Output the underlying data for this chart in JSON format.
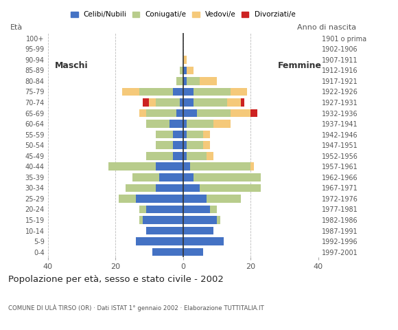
{
  "age_groups": [
    "0-4",
    "5-9",
    "10-14",
    "15-19",
    "20-24",
    "25-29",
    "30-34",
    "35-39",
    "40-44",
    "45-49",
    "50-54",
    "55-59",
    "60-64",
    "65-69",
    "70-74",
    "75-79",
    "80-84",
    "85-89",
    "90-94",
    "95-99",
    "100+"
  ],
  "birth_years": [
    "1997-2001",
    "1992-1996",
    "1987-1991",
    "1982-1986",
    "1977-1981",
    "1972-1976",
    "1967-1971",
    "1962-1966",
    "1957-1961",
    "1952-1956",
    "1947-1951",
    "1942-1946",
    "1937-1941",
    "1932-1936",
    "1927-1931",
    "1922-1926",
    "1917-1921",
    "1912-1916",
    "1907-1911",
    "1902-1906",
    "1901 o prima"
  ],
  "males": {
    "celibi": [
      9,
      14,
      11,
      12,
      11,
      14,
      8,
      7,
      8,
      3,
      3,
      3,
      4,
      2,
      1,
      3,
      0,
      0,
      0,
      0,
      0
    ],
    "coniugati": [
      0,
      0,
      0,
      1,
      2,
      5,
      9,
      8,
      14,
      8,
      5,
      5,
      7,
      9,
      7,
      10,
      2,
      1,
      0,
      0,
      0
    ],
    "vedovi": [
      0,
      0,
      0,
      0,
      0,
      0,
      0,
      0,
      0,
      0,
      0,
      0,
      0,
      2,
      2,
      5,
      0,
      0,
      0,
      0,
      0
    ],
    "divorziati": [
      0,
      0,
      0,
      0,
      0,
      0,
      0,
      0,
      0,
      0,
      0,
      0,
      0,
      0,
      2,
      0,
      0,
      0,
      0,
      0,
      0
    ]
  },
  "females": {
    "celibi": [
      6,
      12,
      9,
      10,
      8,
      7,
      5,
      3,
      2,
      1,
      1,
      1,
      1,
      4,
      3,
      3,
      1,
      1,
      0,
      0,
      0
    ],
    "coniugati": [
      0,
      0,
      0,
      1,
      2,
      10,
      18,
      20,
      18,
      6,
      5,
      5,
      8,
      10,
      10,
      11,
      4,
      0,
      0,
      0,
      0
    ],
    "vedovi": [
      0,
      0,
      0,
      0,
      0,
      0,
      0,
      0,
      1,
      2,
      2,
      2,
      5,
      6,
      4,
      5,
      5,
      2,
      1,
      0,
      0
    ],
    "divorziati": [
      0,
      0,
      0,
      0,
      0,
      0,
      0,
      0,
      0,
      0,
      0,
      0,
      0,
      2,
      1,
      0,
      0,
      0,
      0,
      0,
      0
    ]
  },
  "colors": {
    "celibi": "#4472c4",
    "coniugati": "#b8cc8c",
    "vedovi": "#f5c97a",
    "divorziati": "#cc2222"
  },
  "legend_labels": [
    "Celibi/Nubili",
    "Coniugati/e",
    "Vedovi/e",
    "Divorziati/e"
  ],
  "title": "Popolazione per età, sesso e stato civile - 2002",
  "subtitle": "COMUNE DI ULÀ TIRSO (OR) · Dati ISTAT 1° gennaio 2002 · Elaborazione TUTTITALIA.IT",
  "xlim": 40,
  "xlabel_left": "Maschi",
  "xlabel_right": "Femmine",
  "bg_color": "#ffffff",
  "bar_height": 0.75
}
